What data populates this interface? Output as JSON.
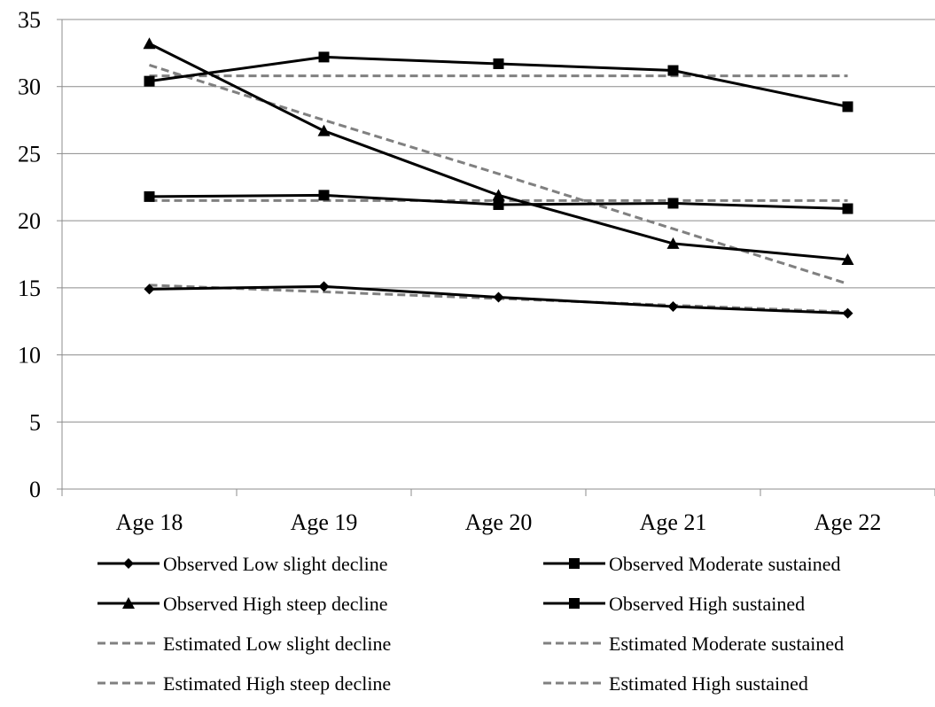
{
  "chart_data": {
    "type": "line",
    "title": "",
    "xlabel": "",
    "ylabel": "",
    "categories": [
      "Age 18",
      "Age 19",
      "Age 20",
      "Age 21",
      "Age 22"
    ],
    "ylim": [
      0,
      35
    ],
    "yticks": [
      "0",
      "5",
      "10",
      "15",
      "20",
      "25",
      "30",
      "35"
    ],
    "grid": "horizontal",
    "legend_position": "bottom",
    "series": [
      {
        "name": "Observed Low slight decline",
        "style": "solid",
        "marker": "diamond",
        "color": "#000000",
        "values": [
          14.9,
          15.1,
          14.3,
          13.6,
          13.1
        ]
      },
      {
        "name": "Observed Moderate sustained",
        "style": "solid",
        "marker": "square",
        "color": "#000000",
        "values": [
          21.8,
          21.9,
          21.2,
          21.3,
          20.9
        ]
      },
      {
        "name": "Observed High steep decline",
        "style": "solid",
        "marker": "triangle",
        "color": "#000000",
        "values": [
          33.2,
          26.7,
          21.9,
          18.3,
          17.1
        ]
      },
      {
        "name": "Observed High sustained",
        "style": "solid",
        "marker": "square",
        "color": "#000000",
        "values": [
          30.4,
          32.2,
          31.7,
          31.2,
          28.5
        ]
      },
      {
        "name": "Estimated Low slight decline",
        "style": "dashed",
        "marker": "none",
        "color": "#808080",
        "values": [
          15.2,
          14.7,
          14.2,
          13.7,
          13.2
        ]
      },
      {
        "name": "Estimated Moderate sustained",
        "style": "dashed",
        "marker": "none",
        "color": "#808080",
        "values": [
          21.5,
          21.5,
          21.5,
          21.5,
          21.5
        ]
      },
      {
        "name": "Estimated High steep decline",
        "style": "dashed",
        "marker": "none",
        "color": "#808080",
        "values": [
          31.6,
          27.5,
          23.5,
          19.4,
          15.3
        ]
      },
      {
        "name": "Estimated High sustained",
        "style": "dashed",
        "marker": "none",
        "color": "#808080",
        "values": [
          30.8,
          30.8,
          30.8,
          30.8,
          30.8
        ]
      }
    ]
  }
}
